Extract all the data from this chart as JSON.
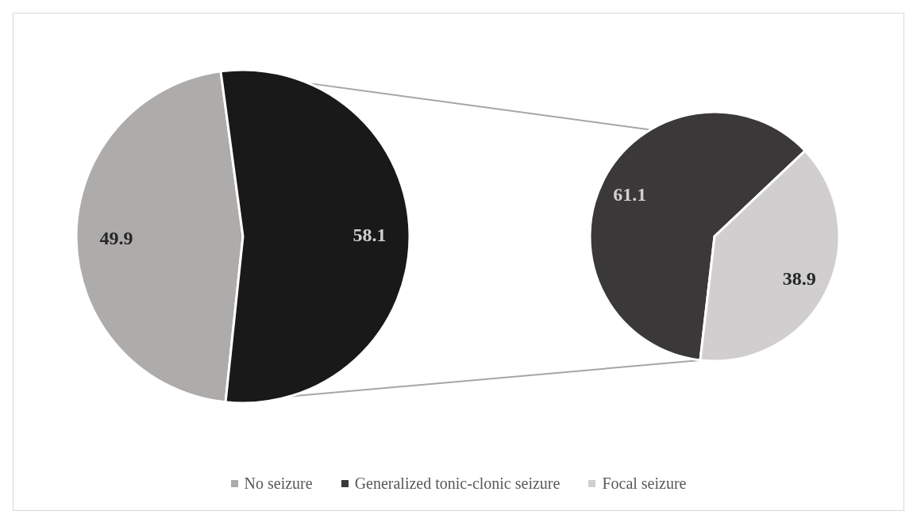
{
  "chart_data": [
    {
      "type": "pie",
      "categories": [
        "No seizure",
        null
      ],
      "values": [
        49.9,
        58.1
      ],
      "colors": [
        "#aeabab",
        "#191919"
      ],
      "data_labels": true,
      "legend": "bottom"
    },
    {
      "type": "pie",
      "categories": [
        "Generalized tonic-clonic seizure",
        "Focal seizure"
      ],
      "values": [
        61.1,
        38.9
      ],
      "colors": [
        "#3a3838",
        "#d0cece"
      ],
      "data_labels": true,
      "legend": "bottom"
    }
  ]
}
